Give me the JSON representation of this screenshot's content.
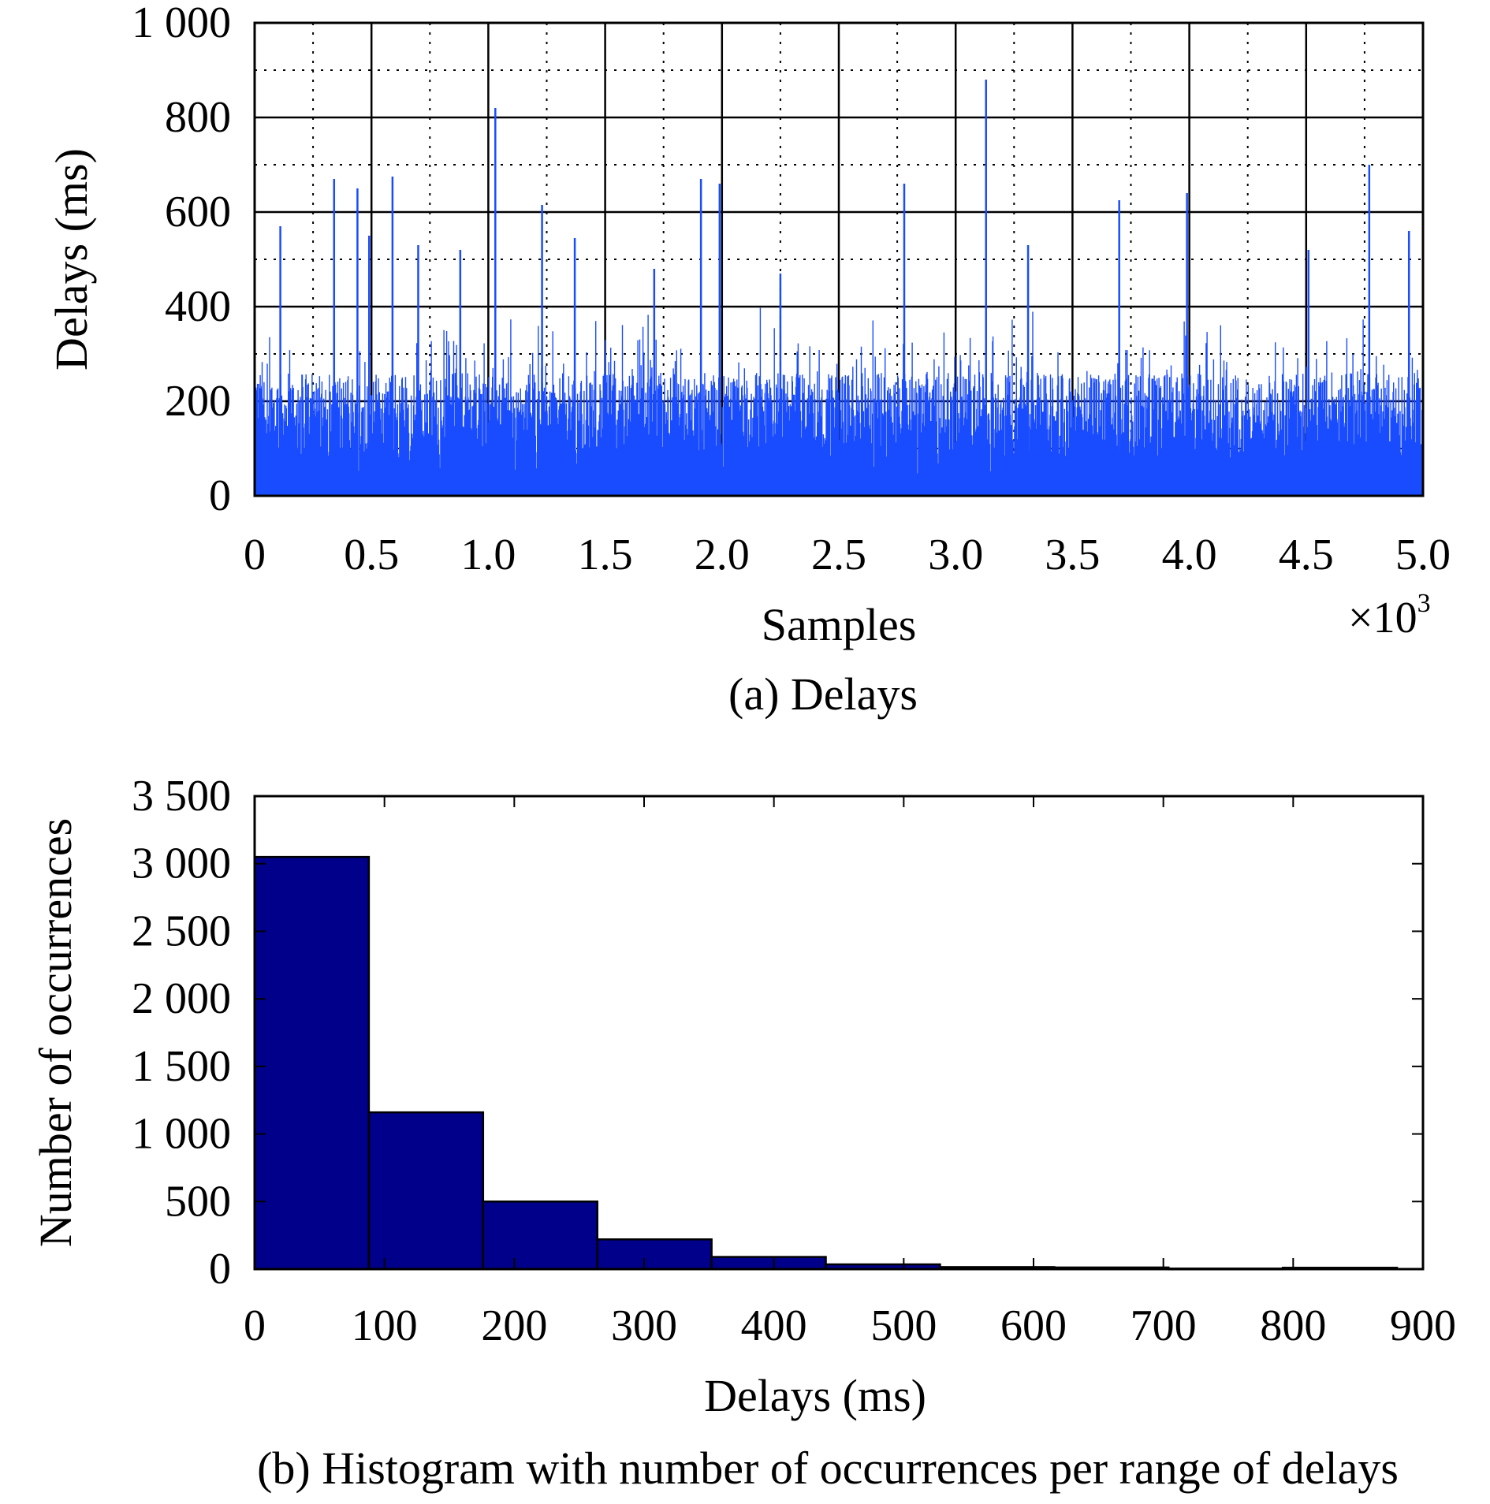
{
  "chart_data": [
    {
      "id": "delays",
      "type": "bar",
      "title": "",
      "caption": "(a) Delays",
      "xlabel": "Samples",
      "ylabel": "Delays (ms)",
      "x_multiplier_label": "×10",
      "x_multiplier_exponent": "3",
      "xlim": [
        0,
        5.0
      ],
      "ylim": [
        0,
        1000
      ],
      "xticks": [
        0,
        0.5,
        1.0,
        1.5,
        2.0,
        2.5,
        3.0,
        3.5,
        4.0,
        4.5,
        5.0
      ],
      "xtick_labels": [
        "0",
        "0.5",
        "1.0",
        "1.5",
        "2.0",
        "2.5",
        "3.0",
        "3.5",
        "4.0",
        "4.5",
        "5.0"
      ],
      "yticks": [
        0,
        200,
        400,
        600,
        800,
        1000
      ],
      "ytick_labels": [
        "0",
        "200",
        "400",
        "600",
        "800",
        "1 000"
      ],
      "grid": true,
      "color": "#1a4cff",
      "sample_count": 5000,
      "baseline_band": [
        80,
        260
      ],
      "peaks": [
        {
          "x": 0.11,
          "y": 570
        },
        {
          "x": 0.34,
          "y": 670
        },
        {
          "x": 0.44,
          "y": 650
        },
        {
          "x": 0.49,
          "y": 550
        },
        {
          "x": 0.59,
          "y": 675
        },
        {
          "x": 0.7,
          "y": 530
        },
        {
          "x": 0.88,
          "y": 520
        },
        {
          "x": 1.03,
          "y": 820
        },
        {
          "x": 1.23,
          "y": 615
        },
        {
          "x": 1.37,
          "y": 545
        },
        {
          "x": 1.71,
          "y": 480
        },
        {
          "x": 1.91,
          "y": 670
        },
        {
          "x": 1.99,
          "y": 660
        },
        {
          "x": 2.25,
          "y": 470
        },
        {
          "x": 2.78,
          "y": 660
        },
        {
          "x": 3.13,
          "y": 880
        },
        {
          "x": 3.31,
          "y": 530
        },
        {
          "x": 3.7,
          "y": 625
        },
        {
          "x": 3.99,
          "y": 640
        },
        {
          "x": 4.51,
          "y": 520
        },
        {
          "x": 4.77,
          "y": 700
        },
        {
          "x": 4.94,
          "y": 560
        }
      ]
    },
    {
      "id": "histogram",
      "type": "bar",
      "title": "",
      "caption": "(b) Histogram with number of occurrences per range of delays",
      "xlabel": "Delays (ms)",
      "ylabel": "Number of occurrences",
      "xlim": [
        0,
        900
      ],
      "ylim": [
        0,
        3500
      ],
      "xticks": [
        0,
        100,
        200,
        300,
        400,
        500,
        600,
        700,
        800,
        900
      ],
      "xtick_labels": [
        "0",
        "100",
        "200",
        "300",
        "400",
        "500",
        "600",
        "700",
        "800",
        "900"
      ],
      "yticks": [
        0,
        500,
        1000,
        1500,
        2000,
        2500,
        3000,
        3500
      ],
      "ytick_labels": [
        "0",
        "500",
        "1 000",
        "1 500",
        "2 000",
        "2 500",
        "3 000",
        "3 500"
      ],
      "grid": false,
      "color": "#00008b",
      "bins": [
        {
          "start": 0,
          "end": 88,
          "value": 3050
        },
        {
          "start": 88,
          "end": 176,
          "value": 1160
        },
        {
          "start": 176,
          "end": 264,
          "value": 500
        },
        {
          "start": 264,
          "end": 352,
          "value": 220
        },
        {
          "start": 352,
          "end": 440,
          "value": 90
        },
        {
          "start": 440,
          "end": 528,
          "value": 35
        },
        {
          "start": 528,
          "end": 616,
          "value": 15
        },
        {
          "start": 616,
          "end": 704,
          "value": 12
        },
        {
          "start": 704,
          "end": 792,
          "value": 4
        },
        {
          "start": 792,
          "end": 880,
          "value": 10
        }
      ]
    }
  ]
}
